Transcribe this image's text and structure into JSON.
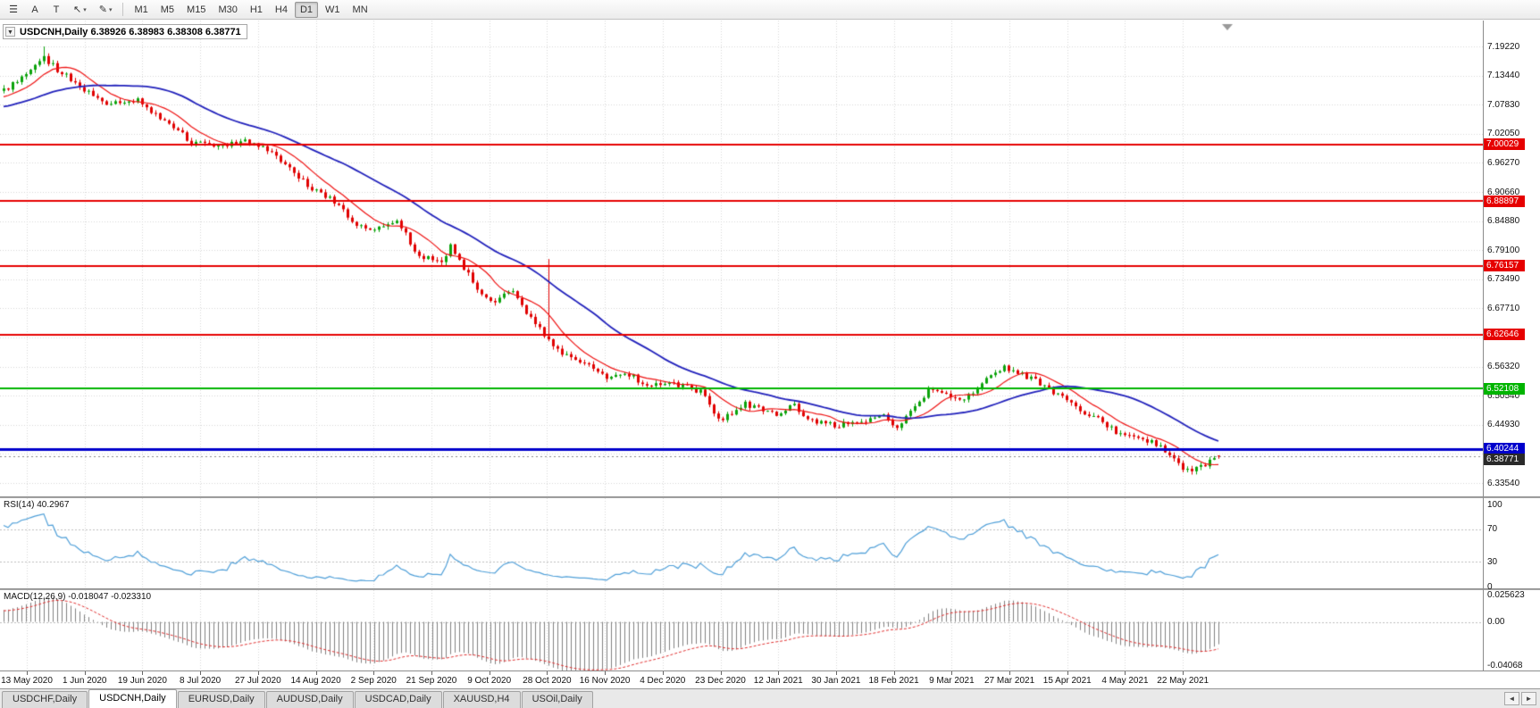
{
  "toolbar": {
    "icon_buttons": [
      {
        "name": "line-studies-icon",
        "glyph": "☰",
        "dropdown": false
      },
      {
        "name": "text-label-icon",
        "glyph": "A",
        "dropdown": false
      },
      {
        "name": "text-tool-icon",
        "glyph": "T",
        "dropdown": false
      },
      {
        "name": "arrow-tools-icon",
        "glyph": "↖",
        "dropdown": true
      },
      {
        "name": "draw-tools-icon",
        "glyph": "✎",
        "dropdown": true
      }
    ],
    "timeframes": [
      {
        "label": "M1",
        "active": false
      },
      {
        "label": "M5",
        "active": false
      },
      {
        "label": "M15",
        "active": false
      },
      {
        "label": "M30",
        "active": false
      },
      {
        "label": "H1",
        "active": false
      },
      {
        "label": "H4",
        "active": false
      },
      {
        "label": "D1",
        "active": true
      },
      {
        "label": "W1",
        "active": false
      },
      {
        "label": "MN",
        "active": false
      }
    ]
  },
  "chart": {
    "title": "USDCNH,Daily 6.38926 6.38983 6.38308 6.38771",
    "collapse_glyph": "▼"
  },
  "rsi_panel": {
    "label": "RSI(14) 40.2967",
    "scale_labels": [
      "100",
      "70",
      "30",
      "0"
    ],
    "scale_values": [
      100,
      70,
      30,
      0
    ],
    "line_color": "#4f9fd8"
  },
  "macd_panel": {
    "label": "MACD(12,26,9) -0.018047 -0.023310",
    "scale_labels": [
      "0.025623",
      "0.00",
      "-0.04068"
    ],
    "scale_values": [
      0.025623,
      0,
      -0.04068
    ],
    "histogram_color": "#818181",
    "signal_color": "#e03030"
  },
  "tabs": {
    "items": [
      {
        "label": "USDCHF,Daily",
        "active": false
      },
      {
        "label": "USDCNH,Daily",
        "active": true
      },
      {
        "label": "EURUSD,Daily",
        "active": false
      },
      {
        "label": "AUDUSD,Daily",
        "active": false
      },
      {
        "label": "USDCAD,Daily",
        "active": false
      },
      {
        "label": "XAUUSD,H4",
        "active": false
      },
      {
        "label": "USOil,Daily",
        "active": false
      }
    ],
    "scroll_left": "◄",
    "scroll_right": "►"
  },
  "chart_data": {
    "type": "candlestick",
    "symbol": "USDCNH",
    "timeframe": "Daily",
    "ohlc_current": {
      "open": 6.38926,
      "high": 6.38983,
      "low": 6.38308,
      "close": 6.38771
    },
    "up_color": "#0ca30c",
    "down_color": "#e00000",
    "y_axis": {
      "top": 7.1922,
      "bottom": 6.3354,
      "tick_labels": [
        "7.19220",
        "7.13440",
        "7.07830",
        "7.02050",
        "6.96270",
        "6.90660",
        "6.84880",
        "6.79100",
        "6.73490",
        "6.67710",
        "6.61930",
        "6.56320",
        "6.50540",
        "6.44930",
        "6.39150",
        "6.33540"
      ]
    },
    "x_axis": {
      "tick_labels": [
        "13 May 2020",
        "1 Jun 2020",
        "19 Jun 2020",
        "8 Jul 2020",
        "27 Jul 2020",
        "14 Aug 2020",
        "2 Sep 2020",
        "21 Sep 2020",
        "9 Oct 2020",
        "28 Oct 2020",
        "16 Nov 2020",
        "4 Dec 2020",
        "23 Dec 2020",
        "12 Jan 2021",
        "30 Jan 2021",
        "18 Feb 2021",
        "9 Mar 2021",
        "27 Mar 2021",
        "15 Apr 2021",
        "4 May 2021",
        "22 May 2021"
      ]
    },
    "levels": [
      {
        "price": 7.00029,
        "label": "7.00029",
        "color": "#e60000",
        "width": 2,
        "type": "resistance"
      },
      {
        "price": 6.88897,
        "label": "6.88897",
        "color": "#e60000",
        "width": 2,
        "type": "resistance"
      },
      {
        "price": 6.76157,
        "label": "6.76157",
        "color": "#e60000",
        "width": 2,
        "type": "resistance"
      },
      {
        "price": 6.62646,
        "label": "6.62646",
        "color": "#e60000",
        "width": 2,
        "type": "resistance"
      },
      {
        "price": 6.52108,
        "label": "6.52108",
        "color": "#00b400",
        "width": 2,
        "type": "level"
      },
      {
        "price": 6.40244,
        "label": "6.40244",
        "color": "#0000cc",
        "width": 3,
        "type": "support"
      }
    ],
    "current_price": {
      "value": 6.38771,
      "label": "6.38771",
      "tag_color": "#2a2a2a"
    },
    "indicators": {
      "rsi": {
        "period": 14,
        "value": 40.2967,
        "levels": [
          70,
          30
        ]
      },
      "macd": {
        "fast": 12,
        "slow": 26,
        "signal_period": 9,
        "value": -0.018047,
        "signal_value": -0.02331,
        "range": [
          -0.04068,
          0.025623
        ]
      }
    },
    "moving_averages": [
      {
        "name": "fast-ma",
        "color": "#ee1111",
        "period": 10
      },
      {
        "name": "slow-ma",
        "color": "#2121bb",
        "period": 34
      }
    ],
    "candles": {
      "count": 273,
      "price_path": [
        [
          0,
          7.105
        ],
        [
          9,
          7.168
        ],
        [
          13,
          7.14
        ],
        [
          22,
          7.08
        ],
        [
          30,
          7.085
        ],
        [
          36,
          7.045
        ],
        [
          42,
          7.005
        ],
        [
          47,
          6.998
        ],
        [
          54,
          7.005
        ],
        [
          60,
          6.985
        ],
        [
          69,
          6.91
        ],
        [
          73,
          6.895
        ],
        [
          79,
          6.84
        ],
        [
          83,
          6.83
        ],
        [
          88,
          6.85
        ],
        [
          93,
          6.78
        ],
        [
          98,
          6.77
        ],
        [
          100,
          6.8
        ],
        [
          105,
          6.73
        ],
        [
          109,
          6.69
        ],
        [
          114,
          6.71
        ],
        [
          117,
          6.67
        ],
        [
          122,
          6.615
        ],
        [
          126,
          6.585
        ],
        [
          131,
          6.565
        ],
        [
          135,
          6.545
        ],
        [
          139,
          6.555
        ],
        [
          144,
          6.525
        ],
        [
          148,
          6.535
        ],
        [
          153,
          6.525
        ],
        [
          156,
          6.515
        ],
        [
          160,
          6.46
        ],
        [
          163,
          6.47
        ],
        [
          166,
          6.49
        ],
        [
          170,
          6.48
        ],
        [
          173,
          6.47
        ],
        [
          177,
          6.49
        ],
        [
          180,
          6.46
        ],
        [
          183,
          6.455
        ],
        [
          187,
          6.445
        ],
        [
          190,
          6.46
        ],
        [
          193,
          6.455
        ],
        [
          197,
          6.47
        ],
        [
          200,
          6.445
        ],
        [
          203,
          6.48
        ],
        [
          207,
          6.515
        ],
        [
          210,
          6.51
        ],
        [
          214,
          6.5
        ],
        [
          217,
          6.51
        ],
        [
          220,
          6.545
        ],
        [
          224,
          6.565
        ],
        [
          226,
          6.555
        ],
        [
          229,
          6.545
        ],
        [
          233,
          6.525
        ],
        [
          236,
          6.51
        ],
        [
          239,
          6.49
        ],
        [
          243,
          6.47
        ],
        [
          246,
          6.455
        ],
        [
          249,
          6.435
        ],
        [
          253,
          6.425
        ],
        [
          256,
          6.42
        ],
        [
          260,
          6.4
        ],
        [
          263,
          6.37
        ],
        [
          266,
          6.36
        ],
        [
          269,
          6.37
        ],
        [
          272,
          6.388
        ]
      ],
      "spikes": [
        {
          "index": 9,
          "high": 7.192
        },
        {
          "index": 122,
          "high": 6.775
        },
        {
          "index": 266,
          "low": 6.352
        }
      ]
    }
  }
}
